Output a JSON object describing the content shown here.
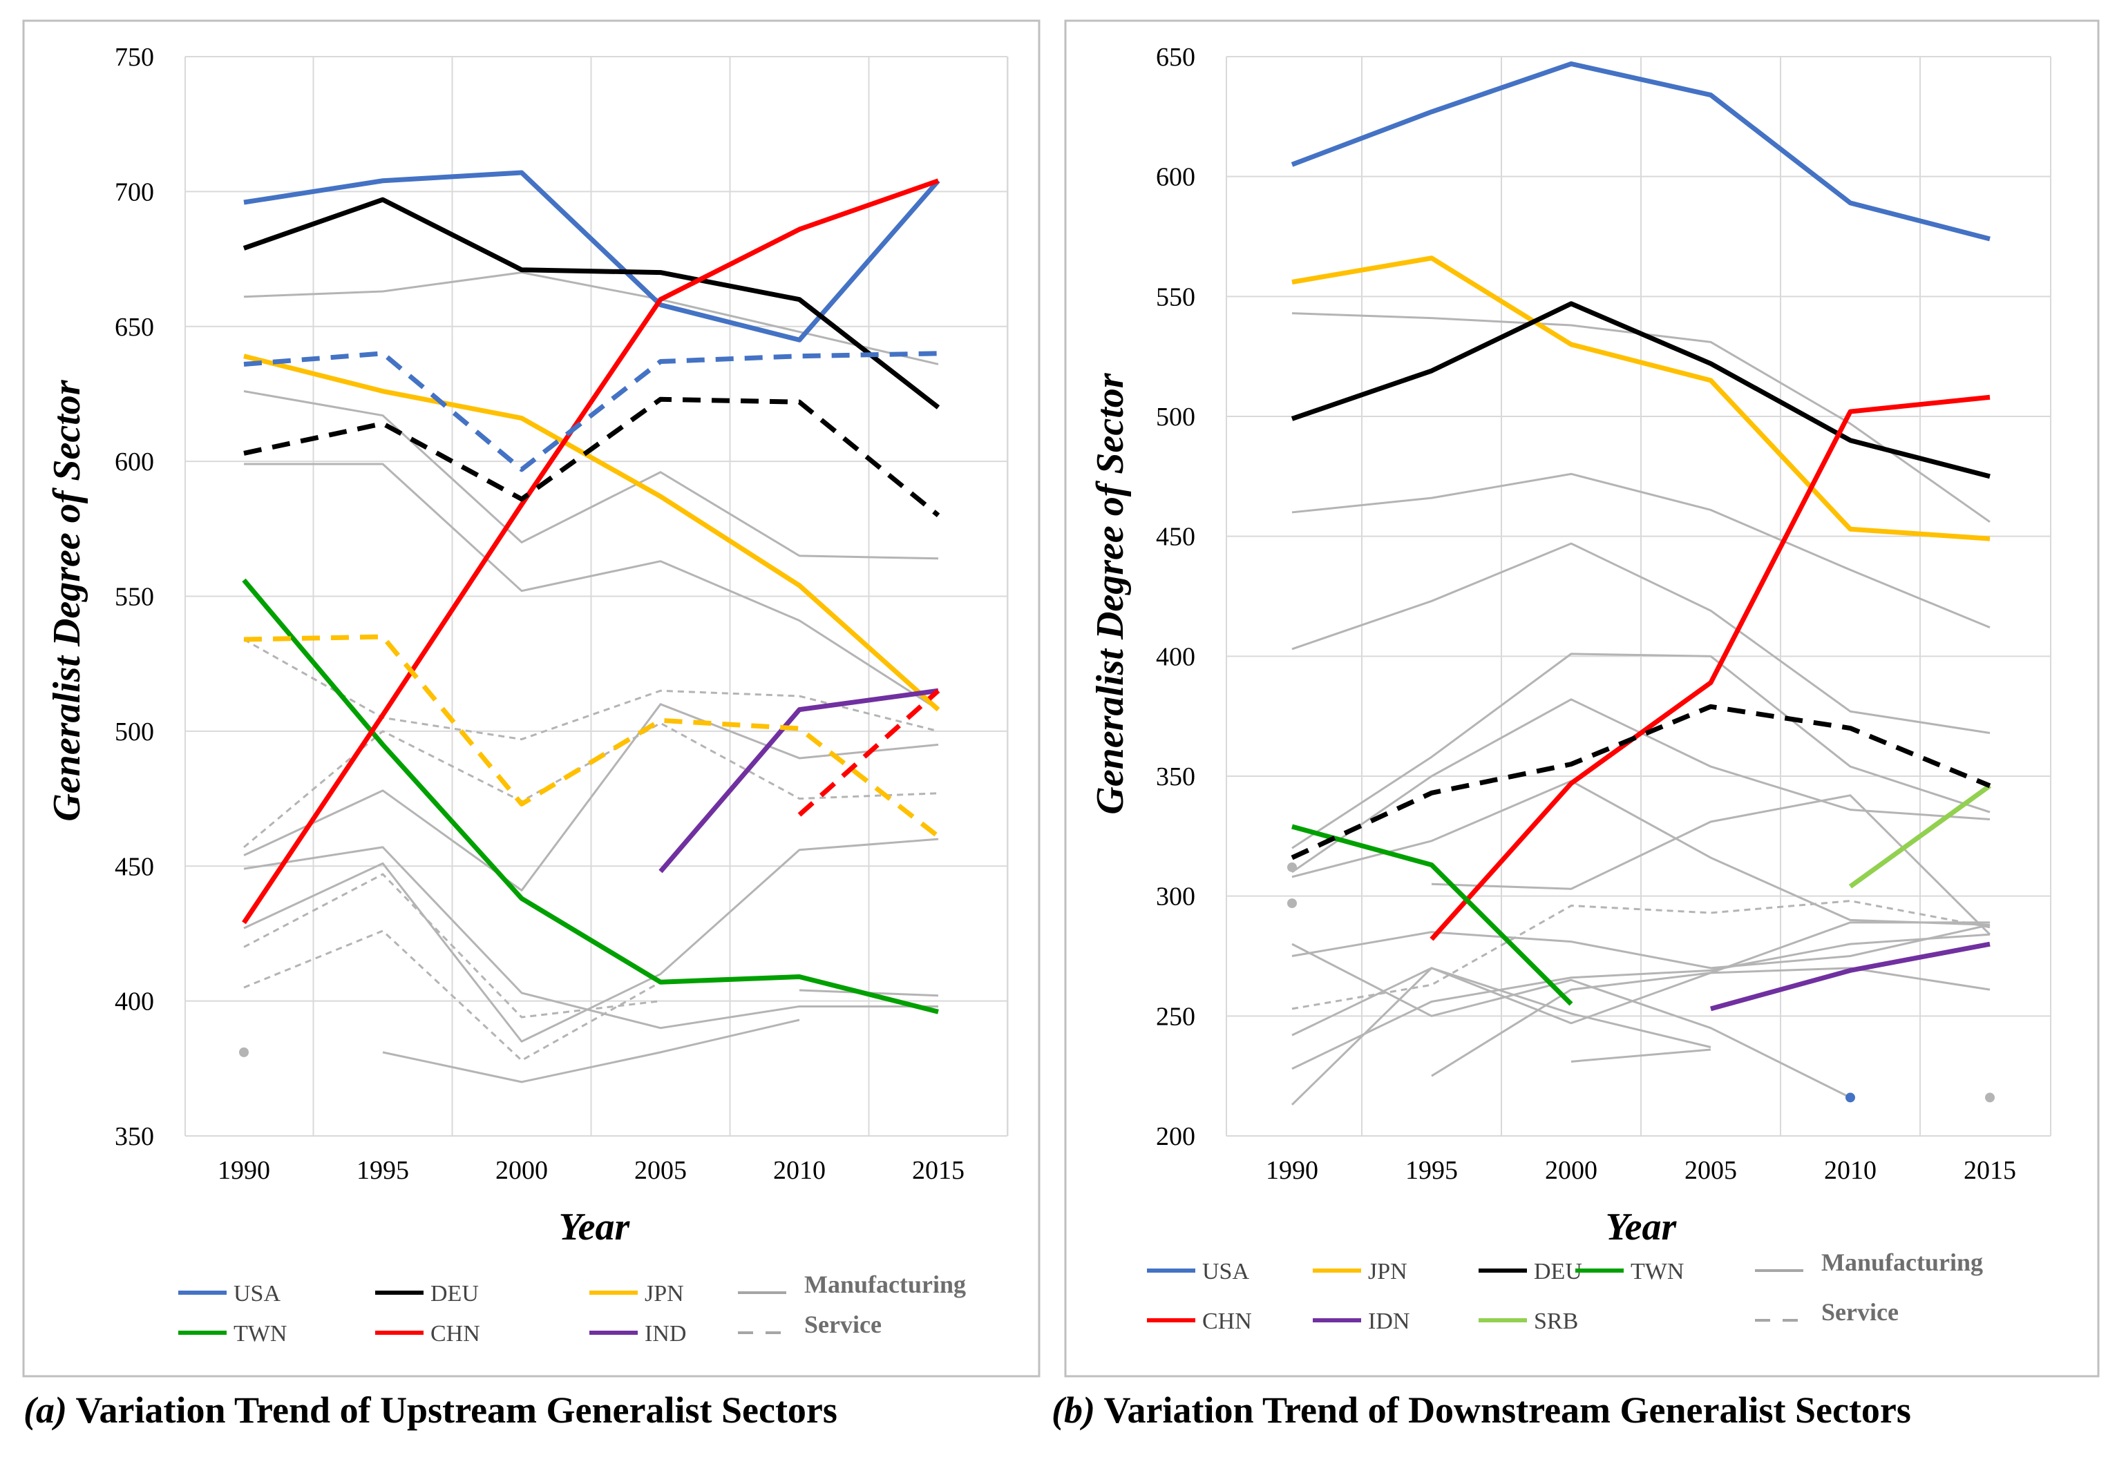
{
  "chart_data": [
    {
      "id": "a",
      "type": "line",
      "caption_label": "(a)",
      "caption_text": " Variation Trend of Upstream Generalist Sectors",
      "xlabel": "Year",
      "ylabel": "Generalist  Degree of  Sector",
      "x": [
        1990,
        1995,
        2000,
        2005,
        2010,
        2015
      ],
      "ylim": [
        350,
        750
      ],
      "yticks": [
        350,
        400,
        450,
        500,
        550,
        600,
        650,
        700,
        750
      ],
      "grid": true,
      "legend": [
        {
          "label": "USA",
          "color": "#4472C4",
          "dash": false
        },
        {
          "label": "DEU",
          "color": "#000000",
          "dash": false
        },
        {
          "label": "JPN",
          "color": "#FFC000",
          "dash": false
        },
        {
          "label": "Manufacturing",
          "color": "#A6A6A6",
          "dash": false
        },
        {
          "label": "TWN",
          "color": "#00A000",
          "dash": false
        },
        {
          "label": "CHN",
          "color": "#FF0000",
          "dash": false
        },
        {
          "label": "IND",
          "color": "#7030A0",
          "dash": false
        },
        {
          "label": "Service",
          "color": "#A6A6A6",
          "dash": true
        }
      ],
      "background_series": [
        {
          "kind": "manufacturing",
          "values": [
            661,
            663,
            670,
            660,
            648,
            636
          ]
        },
        {
          "kind": "manufacturing",
          "values": [
            626,
            617,
            570,
            596,
            565,
            564
          ]
        },
        {
          "kind": "manufacturing",
          "values": [
            599,
            599,
            552,
            563,
            541,
            508
          ]
        },
        {
          "kind": "manufacturing",
          "values": [
            454,
            478,
            441,
            510,
            490,
            495
          ]
        },
        {
          "kind": "manufacturing",
          "values": [
            449,
            457,
            403,
            390,
            398,
            398
          ]
        },
        {
          "kind": "manufacturing",
          "values": [
            427,
            451,
            385,
            410,
            456,
            460
          ]
        },
        {
          "kind": "manufacturing",
          "values": [
            null,
            381,
            370,
            381,
            393,
            null
          ]
        },
        {
          "kind": "manufacturing",
          "values": [
            null,
            null,
            null,
            null,
            404,
            402
          ]
        },
        {
          "kind": "service",
          "values": [
            534,
            505,
            497,
            515,
            513,
            500
          ]
        },
        {
          "kind": "service",
          "values": [
            457,
            500,
            474,
            503,
            475,
            477
          ]
        },
        {
          "kind": "service",
          "values": [
            420,
            447,
            394,
            400,
            null,
            null
          ]
        },
        {
          "kind": "service",
          "values": [
            405,
            426,
            378,
            407,
            null,
            null
          ]
        },
        {
          "kind": "service",
          "values": [
            381,
            null,
            null,
            null,
            null,
            null
          ]
        }
      ],
      "series": [
        {
          "name": "USA",
          "kind": "manufacturing",
          "values": [
            696,
            704,
            707,
            658,
            645,
            704
          ]
        },
        {
          "name": "DEU",
          "kind": "manufacturing",
          "values": [
            679,
            697,
            671,
            670,
            660,
            620
          ]
        },
        {
          "name": "JPN",
          "kind": "manufacturing",
          "values": [
            639,
            626,
            616,
            587,
            554,
            508
          ]
        },
        {
          "name": "TWN",
          "kind": "manufacturing",
          "values": [
            556,
            495,
            438,
            407,
            409,
            396
          ]
        },
        {
          "name": "CHN",
          "kind": "manufacturing",
          "values": [
            429,
            506,
            584,
            660,
            686,
            704
          ]
        },
        {
          "name": "IND",
          "kind": "manufacturing",
          "values": [
            null,
            null,
            null,
            448,
            508,
            515
          ]
        },
        {
          "name": "USA",
          "kind": "service",
          "values": [
            636,
            640,
            597,
            637,
            639,
            640
          ]
        },
        {
          "name": "DEU",
          "kind": "service",
          "values": [
            603,
            614,
            586,
            623,
            622,
            580
          ]
        },
        {
          "name": "JPN",
          "kind": "service",
          "values": [
            534,
            535,
            473,
            504,
            501,
            461
          ]
        },
        {
          "name": "CHN",
          "kind": "service",
          "values": [
            null,
            null,
            null,
            null,
            469,
            515
          ]
        }
      ]
    },
    {
      "id": "b",
      "type": "line",
      "caption_label": "(b)",
      "caption_text": " Variation Trend of Downstream Generalist Sectors",
      "xlabel": "Year",
      "ylabel": "Generalist Degree of Sector",
      "x": [
        1990,
        1995,
        2000,
        2005,
        2010,
        2015
      ],
      "ylim": [
        200,
        650
      ],
      "yticks": [
        200,
        250,
        300,
        350,
        400,
        450,
        500,
        550,
        600,
        650
      ],
      "grid": true,
      "legend": [
        {
          "label": "USA",
          "color": "#4472C4",
          "dash": false
        },
        {
          "label": "JPN",
          "color": "#FFC000",
          "dash": false
        },
        {
          "label": "DEU",
          "color": "#000000",
          "dash": false
        },
        {
          "label": "TWN",
          "color": "#00A000",
          "dash": false
        },
        {
          "label": "Manufacturing",
          "color": "#A6A6A6",
          "dash": false
        },
        {
          "label": "CHN",
          "color": "#FF0000",
          "dash": false
        },
        {
          "label": "IDN",
          "color": "#7030A0",
          "dash": false
        },
        {
          "label": "SRB",
          "color": "#92D050",
          "dash": false
        },
        {
          "label": "Service",
          "color": "#A6A6A6",
          "dash": true
        }
      ],
      "background_series": [
        {
          "kind": "manufacturing",
          "values": [
            543,
            541,
            538,
            531,
            497,
            456
          ]
        },
        {
          "kind": "manufacturing",
          "values": [
            460,
            466,
            476,
            461,
            436,
            412
          ]
        },
        {
          "kind": "manufacturing",
          "values": [
            403,
            423,
            447,
            419,
            377,
            368
          ]
        },
        {
          "kind": "manufacturing",
          "values": [
            320,
            358,
            401,
            400,
            354,
            335
          ]
        },
        {
          "kind": "manufacturing",
          "values": [
            310,
            350,
            382,
            354,
            336,
            332
          ]
        },
        {
          "kind": "manufacturing",
          "values": [
            308,
            323,
            348,
            316,
            290,
            288
          ]
        },
        {
          "kind": "manufacturing",
          "values": [
            null,
            305,
            303,
            331,
            342,
            284
          ]
        },
        {
          "kind": "manufacturing",
          "values": [
            280,
            250,
            265,
            245,
            216,
            null
          ]
        },
        {
          "kind": "manufacturing",
          "values": [
            275,
            285,
            281,
            270,
            275,
            288
          ]
        },
        {
          "kind": "manufacturing",
          "values": [
            242,
            270,
            251,
            237,
            null,
            null
          ]
        },
        {
          "kind": "manufacturing",
          "values": [
            228,
            256,
            266,
            269,
            280,
            284
          ]
        },
        {
          "kind": "manufacturing",
          "values": [
            213,
            270,
            247,
            268,
            270,
            261
          ]
        },
        {
          "kind": "manufacturing",
          "values": [
            null,
            225,
            261,
            268,
            289,
            289
          ]
        },
        {
          "kind": "manufacturing",
          "values": [
            null,
            null,
            231,
            236,
            null,
            null
          ]
        },
        {
          "kind": "manufacturing",
          "values": [
            312,
            null,
            null,
            null,
            null,
            null
          ]
        },
        {
          "kind": "manufacturing",
          "values": [
            null,
            null,
            null,
            null,
            null,
            216
          ]
        },
        {
          "kind": "service",
          "values": [
            253,
            263,
            296,
            293,
            298,
            287
          ]
        },
        {
          "kind": "service",
          "values": [
            297,
            null,
            null,
            null,
            null,
            null
          ]
        }
      ],
      "series": [
        {
          "name": "USA",
          "kind": "manufacturing",
          "values": [
            605,
            627,
            647,
            634,
            589,
            574
          ]
        },
        {
          "name": "JPN",
          "kind": "manufacturing",
          "values": [
            556,
            566,
            530,
            515,
            453,
            449
          ]
        },
        {
          "name": "DEU",
          "kind": "manufacturing",
          "values": [
            499,
            519,
            547,
            522,
            490,
            475
          ]
        },
        {
          "name": "CHN",
          "kind": "manufacturing",
          "values": [
            null,
            282,
            347,
            389,
            502,
            508
          ]
        },
        {
          "name": "TWN",
          "kind": "manufacturing",
          "values": [
            329,
            313,
            255,
            null,
            null,
            null
          ]
        },
        {
          "name": "SRB",
          "kind": "manufacturing",
          "values": [
            null,
            null,
            null,
            null,
            304,
            346
          ]
        },
        {
          "name": "IDN",
          "kind": "manufacturing",
          "values": [
            null,
            null,
            null,
            253,
            269,
            280
          ]
        },
        {
          "name": "DEU",
          "kind": "service",
          "values": [
            316,
            343,
            355,
            379,
            370,
            346
          ]
        },
        {
          "name": "USA",
          "kind": "manufacturing",
          "values": [
            null,
            null,
            null,
            null,
            216,
            null
          ]
        }
      ]
    }
  ]
}
